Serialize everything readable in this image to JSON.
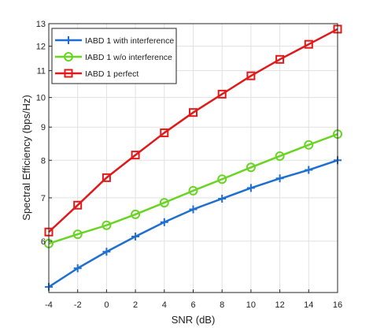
{
  "chart_data": {
    "type": "line",
    "xlabel": "SNR (dB)",
    "ylabel": "Spectral Efficiency (bps/Hz)",
    "xlim": [
      -4,
      16
    ],
    "ylim": [
      5,
      13
    ],
    "y_scale": "log",
    "x_ticks": [
      "-4",
      "-2",
      "0",
      "2",
      "4",
      "6",
      "8",
      "10",
      "12",
      "14",
      "16"
    ],
    "y_ticks": [
      "6",
      "7",
      "8",
      "9",
      "10",
      "11",
      "12",
      "13"
    ],
    "grid": true,
    "legend_position": "top-left",
    "x": [
      -4,
      -2,
      0,
      2,
      4,
      6,
      8,
      10,
      12,
      14,
      16
    ],
    "series": [
      {
        "name": "IABD 1 with interference",
        "color": "#1f6fd1",
        "marker": "plus",
        "values": [
          5.1,
          5.45,
          5.78,
          6.1,
          6.42,
          6.72,
          6.98,
          7.25,
          7.5,
          7.73,
          8.0
        ]
      },
      {
        "name": "IABD 1 w/o interference",
        "color": "#6ad424",
        "marker": "circle",
        "values": [
          5.95,
          6.15,
          6.35,
          6.6,
          6.88,
          7.18,
          7.48,
          7.8,
          8.12,
          8.45,
          8.78
        ]
      },
      {
        "name": "IABD 1 perfect",
        "color": "#e01a1a",
        "marker": "square",
        "values": [
          6.2,
          6.82,
          7.52,
          8.15,
          8.82,
          9.48,
          10.12,
          10.8,
          11.45,
          12.08,
          12.75
        ]
      }
    ]
  }
}
